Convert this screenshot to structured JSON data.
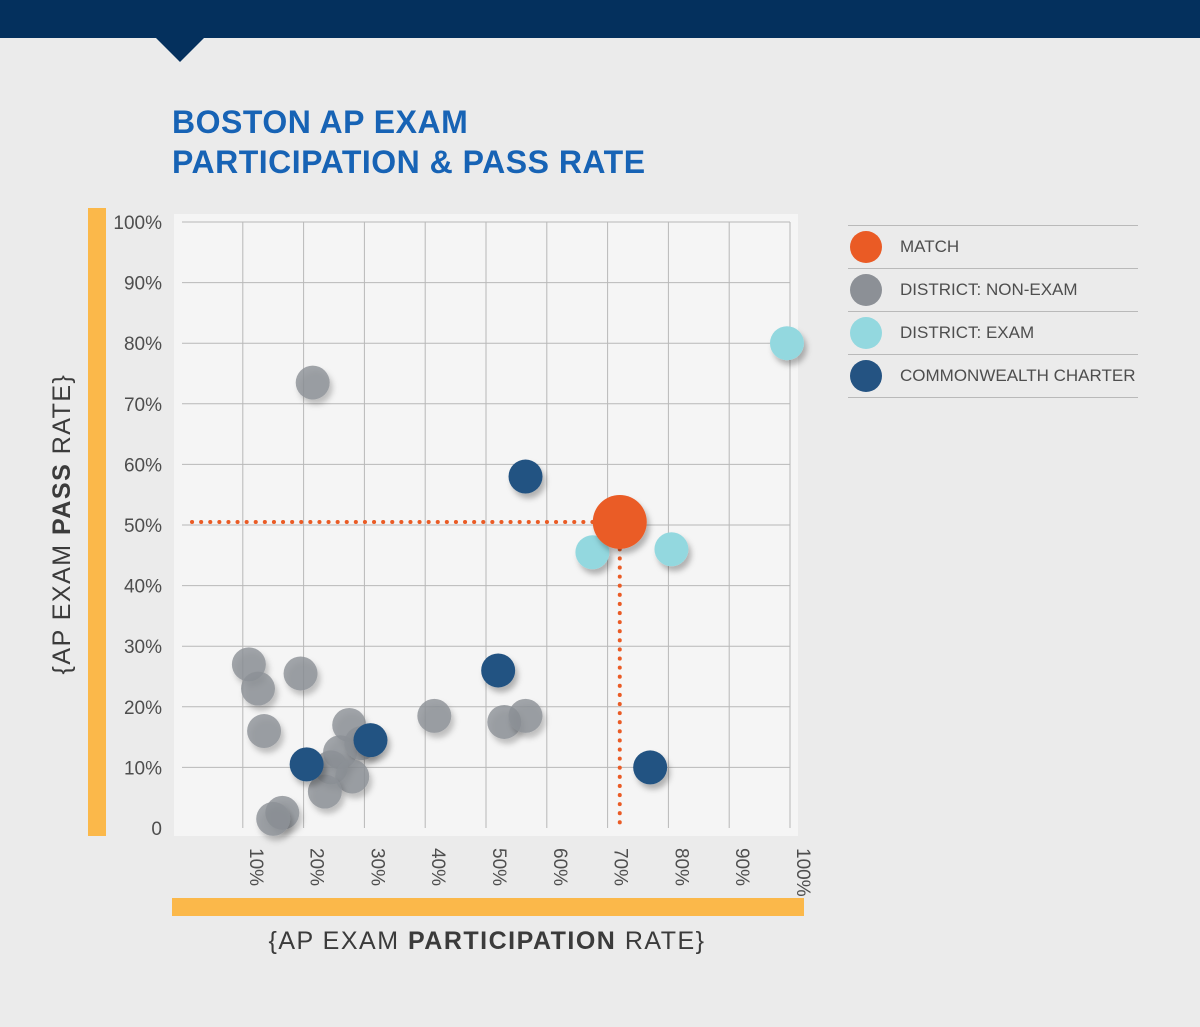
{
  "header": {
    "title_line1": "BOSTON AP EXAM",
    "title_line2": "PARTICIPATION & PASS RATE"
  },
  "axis_labels": {
    "y_prefix": "{AP EXAM ",
    "y_bold": "PASS",
    "y_suffix": " RATE}",
    "x_prefix": "{AP EXAM ",
    "x_bold": "PARTICIPATION",
    "x_suffix": " RATE}"
  },
  "colors": {
    "background": "#ebebeb",
    "header_bar": "#04305d",
    "title": "#1763b5",
    "axis_accent": "#fbb84a",
    "match": "#ea5b25",
    "district_non_exam": "#8c9096",
    "district_exam": "#93d8df",
    "commonwealth_charter": "#245382"
  },
  "legend": [
    {
      "key": "match",
      "label": "MATCH",
      "color": "#ea5b25"
    },
    {
      "key": "district_non_exam",
      "label": "DISTRICT: NON-EXAM",
      "color": "#8c9096"
    },
    {
      "key": "district_exam",
      "label": "DISTRICT: EXAM",
      "color": "#93d8df"
    },
    {
      "key": "commonwealth_charter",
      "label": "COMMONWEALTH CHARTER",
      "color": "#245382"
    }
  ],
  "chart_data": {
    "type": "scatter",
    "title": "BOSTON AP EXAM PARTICIPATION & PASS RATE",
    "xlabel": "{AP EXAM PARTICIPATION RATE}",
    "ylabel": "{AP EXAM PASS RATE}",
    "xlim": [
      0,
      100
    ],
    "ylim": [
      0,
      100
    ],
    "grid": true,
    "legend_position": "right",
    "x_ticks": [
      "10%",
      "20%",
      "30%",
      "40%",
      "50%",
      "60%",
      "70%",
      "80%",
      "90%",
      "100%"
    ],
    "y_ticks": [
      "0",
      "10%",
      "20%",
      "30%",
      "40%",
      "50%",
      "60%",
      "70%",
      "80%",
      "90%",
      "100%"
    ],
    "guide_lines": {
      "x": 72,
      "y": 50.5
    },
    "series": [
      {
        "name": "MATCH",
        "key": "match",
        "points": [
          {
            "x": 72,
            "y": 50.5
          }
        ]
      },
      {
        "name": "DISTRICT: NON-EXAM",
        "key": "district_non_exam",
        "points": [
          {
            "x": 21.5,
            "y": 73.5
          },
          {
            "x": 11,
            "y": 27
          },
          {
            "x": 12.5,
            "y": 23
          },
          {
            "x": 19.5,
            "y": 25.5
          },
          {
            "x": 13.5,
            "y": 16
          },
          {
            "x": 27.5,
            "y": 17
          },
          {
            "x": 26,
            "y": 12.5
          },
          {
            "x": 24.5,
            "y": 10
          },
          {
            "x": 29.5,
            "y": 14
          },
          {
            "x": 28,
            "y": 8.5
          },
          {
            "x": 23.5,
            "y": 6
          },
          {
            "x": 16.5,
            "y": 2.5
          },
          {
            "x": 15,
            "y": 1.5
          },
          {
            "x": 41.5,
            "y": 18.5
          },
          {
            "x": 53,
            "y": 17.5
          },
          {
            "x": 56.5,
            "y": 18.5
          }
        ]
      },
      {
        "name": "DISTRICT: EXAM",
        "key": "district_exam",
        "points": [
          {
            "x": 99.5,
            "y": 80
          },
          {
            "x": 67.5,
            "y": 45.5
          },
          {
            "x": 80.5,
            "y": 46
          }
        ]
      },
      {
        "name": "COMMONWEALTH CHARTER",
        "key": "commonwealth_charter",
        "points": [
          {
            "x": 56.5,
            "y": 58
          },
          {
            "x": 52,
            "y": 26
          },
          {
            "x": 31,
            "y": 14.5
          },
          {
            "x": 20.5,
            "y": 10.5
          },
          {
            "x": 77,
            "y": 10
          }
        ]
      }
    ]
  }
}
